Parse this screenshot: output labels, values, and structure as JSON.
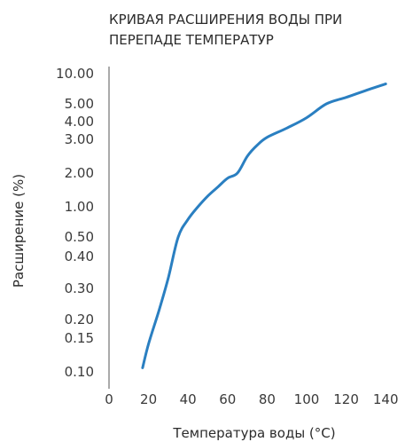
{
  "chart_data": {
    "type": "line",
    "title_lines": [
      "КРИВАЯ РАСШИРЕНИЯ ВОДЫ ПРИ",
      "ПЕРЕПАДЕ ТЕМПЕРАТУР"
    ],
    "xlabel": "Температура воды (°C)",
    "ylabel": "Расширение (%)",
    "x_ticks": [
      0,
      20,
      40,
      60,
      80,
      100,
      120,
      140
    ],
    "y_ticks": [
      {
        "value": 0.1,
        "label": "0.10"
      },
      {
        "value": 0.15,
        "label": "0.15"
      },
      {
        "value": 0.2,
        "label": "0.20"
      },
      {
        "value": 0.3,
        "label": "0.30"
      },
      {
        "value": 0.4,
        "label": "0.40"
      },
      {
        "value": 0.5,
        "label": "0.50"
      },
      {
        "value": 1.0,
        "label": "1.00"
      },
      {
        "value": 2.0,
        "label": "2.00"
      },
      {
        "value": 3.0,
        "label": "3.00"
      },
      {
        "value": 4.0,
        "label": "4.00"
      },
      {
        "value": 5.0,
        "label": "5.00"
      },
      {
        "value": 10.0,
        "label": "10.00"
      }
    ],
    "xlim": [
      0,
      145
    ],
    "grid": false,
    "series": [
      {
        "color": "#2a7fc1",
        "x": [
          17,
          20,
          25,
          30,
          35,
          40,
          45,
          50,
          55,
          60,
          65,
          70,
          75,
          80,
          90,
          100,
          110,
          120,
          130,
          140
        ],
        "y": [
          0.105,
          0.14,
          0.22,
          0.33,
          0.5,
          0.75,
          1.0,
          1.25,
          1.5,
          1.8,
          2.0,
          2.45,
          2.8,
          3.1,
          3.6,
          4.2,
          5.0,
          5.8,
          6.8,
          7.9
        ]
      }
    ]
  }
}
